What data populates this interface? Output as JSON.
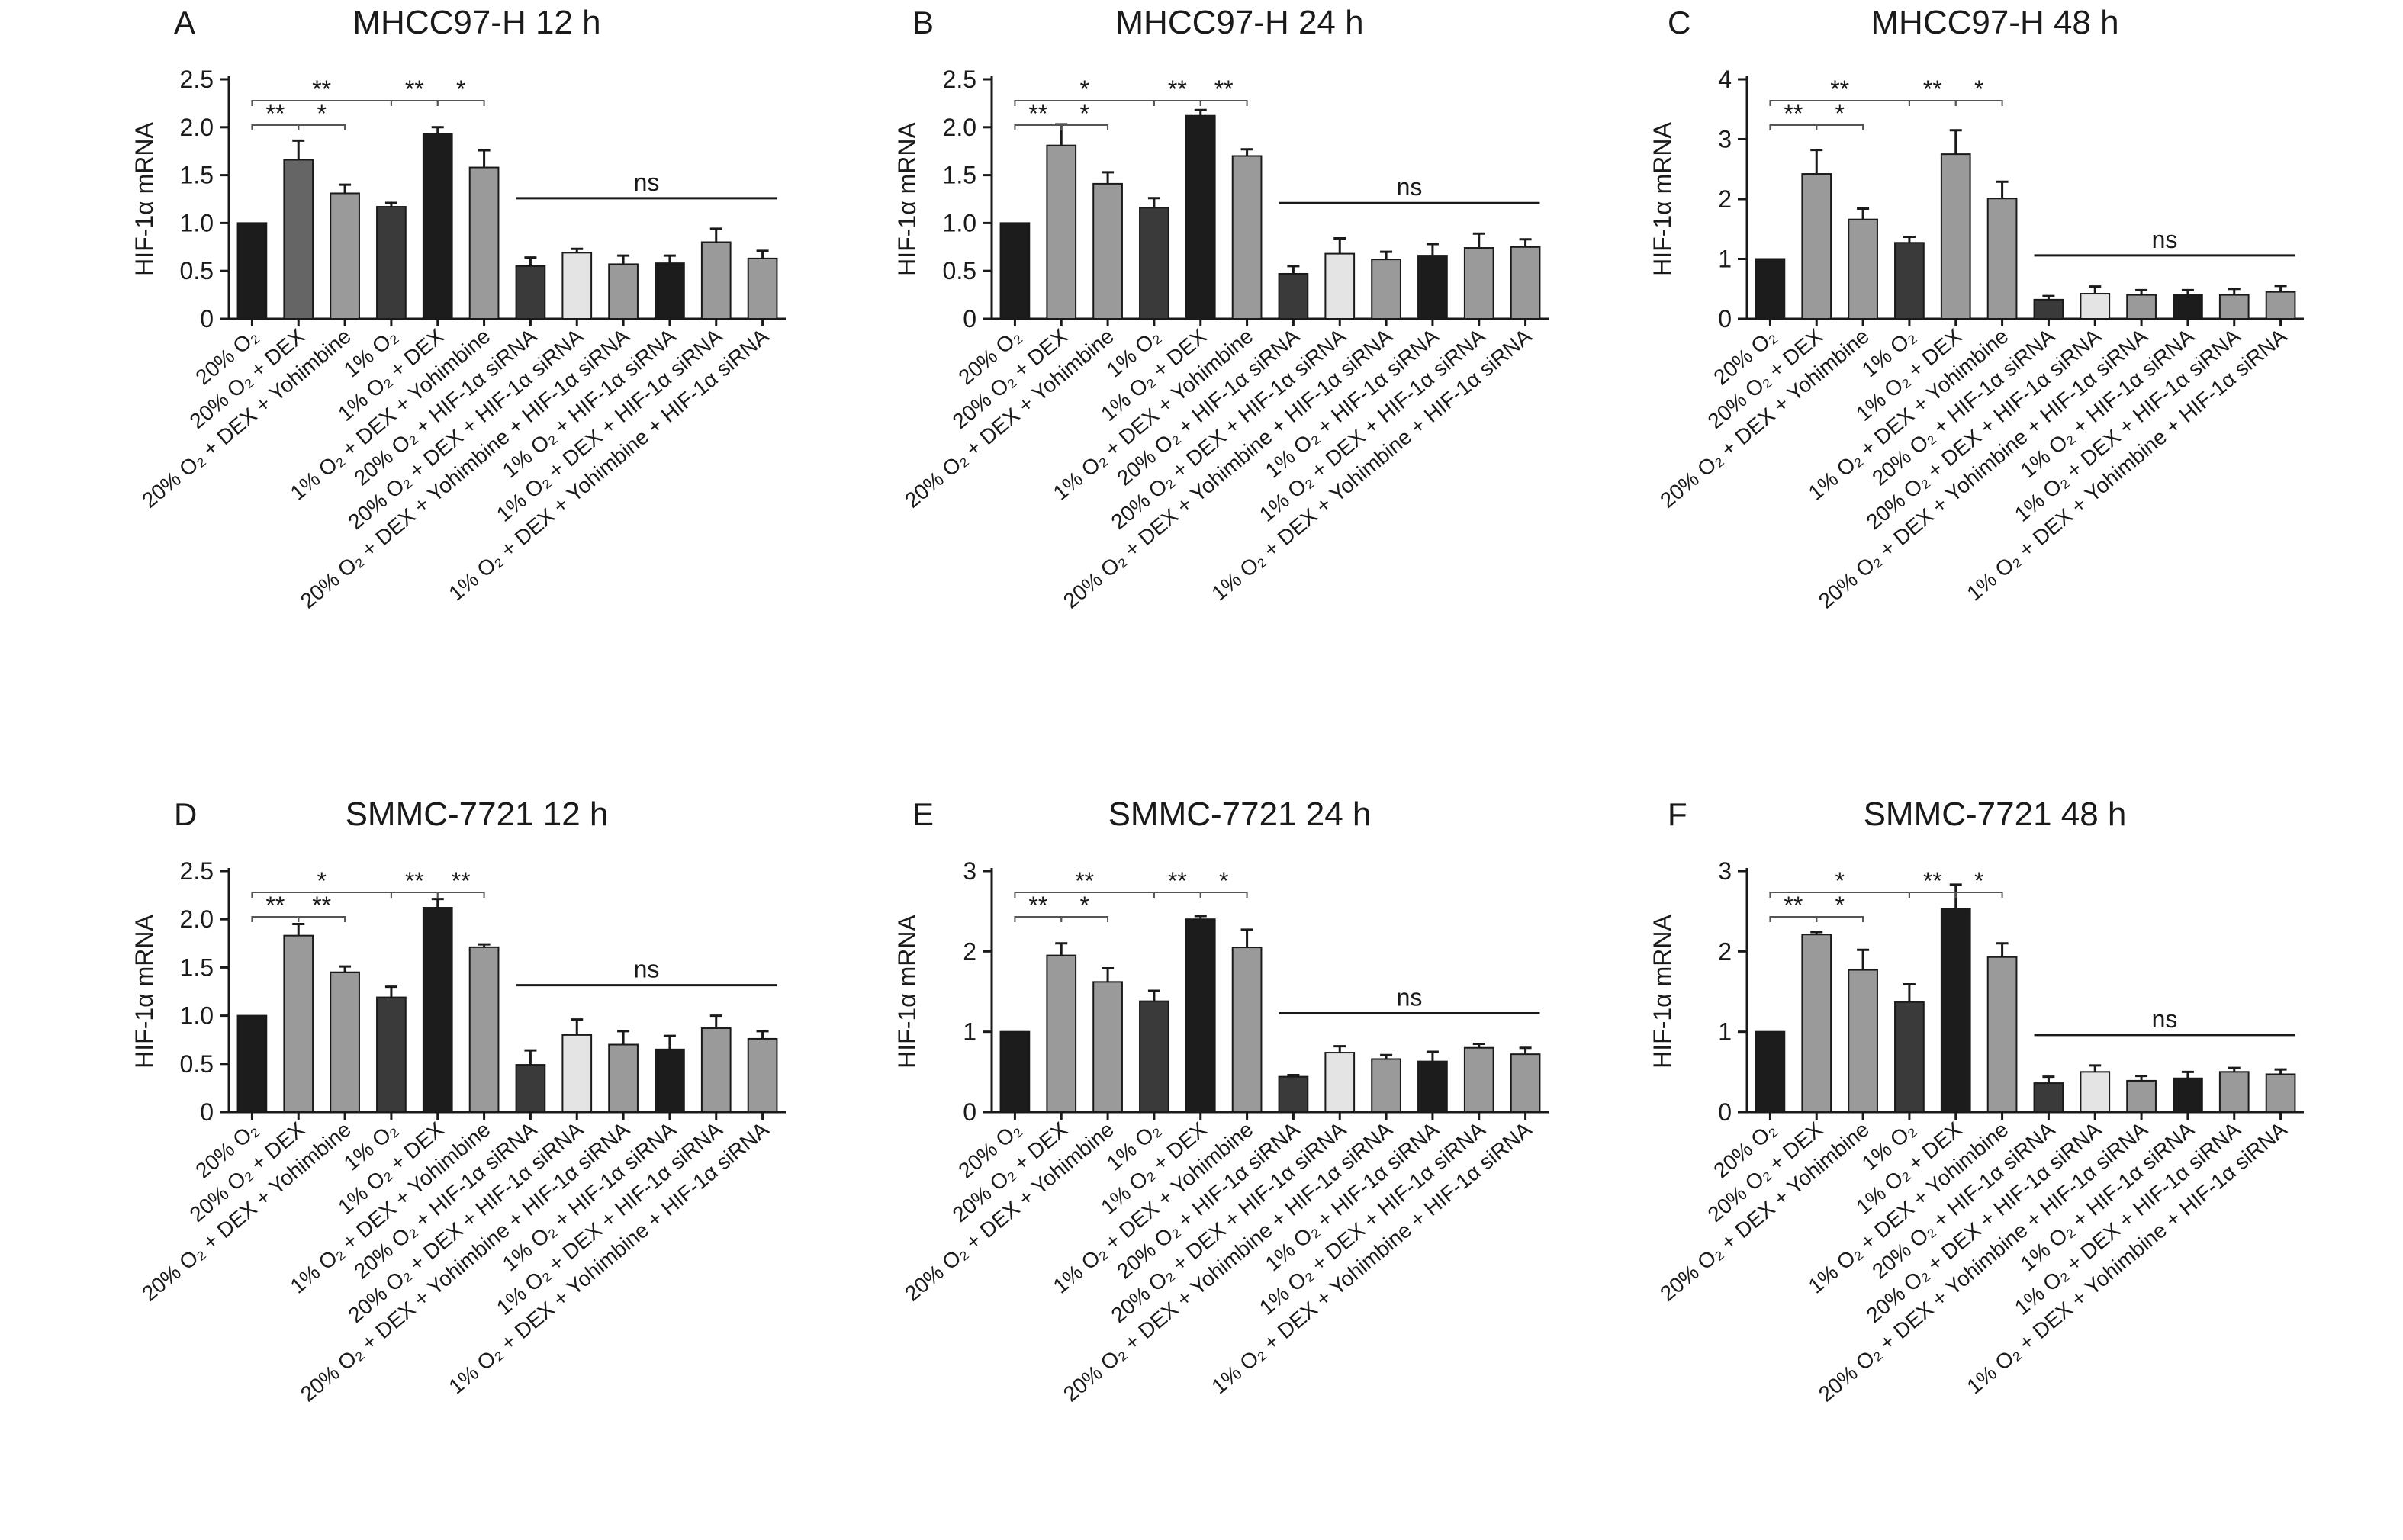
{
  "figure": {
    "categories": [
      "20% O₂",
      "20% O₂ + DEX",
      "20% O₂ + DEX + Yohimbine",
      "1% O₂",
      "1% O₂ + DEX",
      "1% O₂ + DEX + Yohimbine",
      "20% O₂ + HIF-1α siRNA",
      "20% O₂ + DEX + HIF-1α siRNA",
      "20% O₂ + DEX + Yohimbine + HIF-1α siRNA",
      "1% O₂ + HIF-1α siRNA",
      "1% O₂ + DEX + HIF-1α siRNA",
      "1% O₂ + DEX + Yohimbine + HIF-1α siRNA"
    ],
    "colors": {
      "black": "#1c1c1c",
      "dark": "#3a3a3a",
      "medium": "#656565",
      "gray": "#9a9a9a",
      "light": "#e4e4e4"
    }
  },
  "chart_data": [
    {
      "type": "bar",
      "panel_letter": "A",
      "title": "MHCC97-H 12 h",
      "ylabel": "HIF-1α mRNA",
      "ylim": [
        0,
        2.5
      ],
      "yticks": [
        0,
        0.5,
        1.0,
        1.5,
        2.0,
        2.5
      ],
      "ytick_labels": [
        "0",
        "0.5",
        "1.0",
        "1.5",
        "2.0",
        "2.5"
      ],
      "values": [
        1.0,
        1.66,
        1.31,
        1.17,
        1.93,
        1.58,
        0.55,
        0.69,
        0.57,
        0.58,
        0.8,
        0.63
      ],
      "errors": [
        0.0,
        0.2,
        0.09,
        0.04,
        0.07,
        0.18,
        0.09,
        0.04,
        0.09,
        0.08,
        0.14,
        0.08
      ],
      "fills": [
        "black",
        "medium",
        "gray",
        "dark",
        "black",
        "gray",
        "dark",
        "light",
        "gray",
        "black",
        "gray",
        "gray"
      ],
      "annotations": [
        {
          "text": "**",
          "from": 0,
          "to": 1,
          "level": 1
        },
        {
          "text": "*",
          "from": 1,
          "to": 2,
          "level": 1
        },
        {
          "text": "**",
          "from": 0,
          "to": 3,
          "level": 2
        },
        {
          "text": "**",
          "from": 3,
          "to": 4,
          "level": 2
        },
        {
          "text": "*",
          "from": 4,
          "to": 5,
          "level": 2
        }
      ],
      "ns": {
        "text": "ns",
        "from": 6,
        "to": 11
      }
    },
    {
      "type": "bar",
      "panel_letter": "B",
      "title": "MHCC97-H 24 h",
      "ylabel": "HIF-1α mRNA",
      "ylim": [
        0,
        2.5
      ],
      "yticks": [
        0,
        0.5,
        1.0,
        1.5,
        2.0,
        2.5
      ],
      "ytick_labels": [
        "0",
        "0.5",
        "1.0",
        "1.5",
        "2.0",
        "2.5"
      ],
      "values": [
        1.0,
        1.81,
        1.41,
        1.16,
        2.12,
        1.7,
        0.47,
        0.68,
        0.62,
        0.66,
        0.74,
        0.75
      ],
      "errors": [
        0.0,
        0.22,
        0.12,
        0.1,
        0.06,
        0.07,
        0.08,
        0.16,
        0.08,
        0.12,
        0.15,
        0.08
      ],
      "fills": [
        "black",
        "gray",
        "gray",
        "dark",
        "black",
        "gray",
        "dark",
        "light",
        "gray",
        "black",
        "gray",
        "gray"
      ],
      "annotations": [
        {
          "text": "**",
          "from": 0,
          "to": 1,
          "level": 1
        },
        {
          "text": "*",
          "from": 1,
          "to": 2,
          "level": 1
        },
        {
          "text": "*",
          "from": 0,
          "to": 3,
          "level": 2
        },
        {
          "text": "**",
          "from": 3,
          "to": 4,
          "level": 2
        },
        {
          "text": "**",
          "from": 4,
          "to": 5,
          "level": 2
        }
      ],
      "ns": {
        "text": "ns",
        "from": 6,
        "to": 11
      }
    },
    {
      "type": "bar",
      "panel_letter": "C",
      "title": "MHCC97-H 48 h",
      "ylabel": "HIF-1α mRNA",
      "ylim": [
        0,
        4
      ],
      "yticks": [
        0,
        1,
        2,
        3,
        4
      ],
      "ytick_labels": [
        "0",
        "1",
        "2",
        "3",
        "4"
      ],
      "values": [
        1.0,
        2.42,
        1.66,
        1.27,
        2.75,
        2.01,
        0.32,
        0.42,
        0.4,
        0.4,
        0.4,
        0.45
      ],
      "errors": [
        0.0,
        0.4,
        0.18,
        0.1,
        0.4,
        0.28,
        0.06,
        0.12,
        0.08,
        0.08,
        0.1,
        0.1
      ],
      "fills": [
        "black",
        "gray",
        "gray",
        "dark",
        "gray",
        "gray",
        "dark",
        "light",
        "gray",
        "black",
        "gray",
        "gray"
      ],
      "annotations": [
        {
          "text": "**",
          "from": 0,
          "to": 1,
          "level": 1
        },
        {
          "text": "*",
          "from": 1,
          "to": 2,
          "level": 1
        },
        {
          "text": "**",
          "from": 0,
          "to": 3,
          "level": 2
        },
        {
          "text": "**",
          "from": 3,
          "to": 4,
          "level": 2
        },
        {
          "text": "*",
          "from": 4,
          "to": 5,
          "level": 2
        }
      ],
      "ns": {
        "text": "ns",
        "from": 6,
        "to": 11
      }
    },
    {
      "type": "bar",
      "panel_letter": "D",
      "title": "SMMC-7721 12 h",
      "ylabel": "HIF-1α mRNA",
      "ylim": [
        0,
        2.5
      ],
      "yticks": [
        0,
        0.5,
        1.0,
        1.5,
        2.0,
        2.5
      ],
      "ytick_labels": [
        "0",
        "0.5",
        "1.0",
        "1.5",
        "2.0",
        "2.5"
      ],
      "values": [
        1.0,
        1.83,
        1.45,
        1.19,
        2.12,
        1.71,
        0.49,
        0.8,
        0.7,
        0.65,
        0.87,
        0.76
      ],
      "errors": [
        0.0,
        0.12,
        0.06,
        0.11,
        0.09,
        0.03,
        0.15,
        0.16,
        0.14,
        0.14,
        0.13,
        0.08
      ],
      "fills": [
        "black",
        "gray",
        "gray",
        "dark",
        "black",
        "gray",
        "dark",
        "light",
        "gray",
        "black",
        "gray",
        "gray"
      ],
      "annotations": [
        {
          "text": "**",
          "from": 0,
          "to": 1,
          "level": 1
        },
        {
          "text": "**",
          "from": 1,
          "to": 2,
          "level": 1
        },
        {
          "text": "*",
          "from": 0,
          "to": 3,
          "level": 2
        },
        {
          "text": "**",
          "from": 3,
          "to": 4,
          "level": 2
        },
        {
          "text": "**",
          "from": 4,
          "to": 5,
          "level": 2
        }
      ],
      "ns": {
        "text": "ns",
        "from": 6,
        "to": 11
      }
    },
    {
      "type": "bar",
      "panel_letter": "E",
      "title": "SMMC-7721 24 h",
      "ylabel": "HIF-1α mRNA",
      "ylim": [
        0,
        3
      ],
      "yticks": [
        0,
        1,
        2,
        3
      ],
      "ytick_labels": [
        "0",
        "1",
        "2",
        "3"
      ],
      "values": [
        1.0,
        1.95,
        1.62,
        1.38,
        2.4,
        2.05,
        0.44,
        0.74,
        0.66,
        0.63,
        0.8,
        0.72
      ],
      "errors": [
        0.0,
        0.15,
        0.17,
        0.13,
        0.04,
        0.22,
        0.02,
        0.08,
        0.05,
        0.12,
        0.05,
        0.08
      ],
      "fills": [
        "black",
        "gray",
        "gray",
        "dark",
        "black",
        "gray",
        "dark",
        "light",
        "gray",
        "black",
        "gray",
        "gray"
      ],
      "annotations": [
        {
          "text": "**",
          "from": 0,
          "to": 1,
          "level": 1
        },
        {
          "text": "*",
          "from": 1,
          "to": 2,
          "level": 1
        },
        {
          "text": "**",
          "from": 0,
          "to": 3,
          "level": 2
        },
        {
          "text": "**",
          "from": 3,
          "to": 4,
          "level": 2
        },
        {
          "text": "*",
          "from": 4,
          "to": 5,
          "level": 2
        }
      ],
      "ns": {
        "text": "ns",
        "from": 6,
        "to": 11
      }
    },
    {
      "type": "bar",
      "panel_letter": "F",
      "title": "SMMC-7721 48 h",
      "ylabel": "HIF-1α mRNA",
      "ylim": [
        0,
        3
      ],
      "yticks": [
        0,
        1,
        2,
        3
      ],
      "ytick_labels": [
        "0",
        "1",
        "2",
        "3"
      ],
      "values": [
        1.0,
        2.21,
        1.77,
        1.37,
        2.53,
        1.93,
        0.36,
        0.5,
        0.39,
        0.42,
        0.5,
        0.47
      ],
      "errors": [
        0.0,
        0.03,
        0.25,
        0.22,
        0.3,
        0.17,
        0.08,
        0.08,
        0.06,
        0.08,
        0.05,
        0.06
      ],
      "fills": [
        "black",
        "gray",
        "gray",
        "dark",
        "black",
        "gray",
        "dark",
        "light",
        "gray",
        "black",
        "gray",
        "gray"
      ],
      "annotations": [
        {
          "text": "**",
          "from": 0,
          "to": 1,
          "level": 1
        },
        {
          "text": "*",
          "from": 1,
          "to": 2,
          "level": 1
        },
        {
          "text": "*",
          "from": 0,
          "to": 3,
          "level": 2
        },
        {
          "text": "**",
          "from": 3,
          "to": 4,
          "level": 2
        },
        {
          "text": "*",
          "from": 4,
          "to": 5,
          "level": 2
        }
      ],
      "ns": {
        "text": "ns",
        "from": 6,
        "to": 11
      }
    }
  ]
}
